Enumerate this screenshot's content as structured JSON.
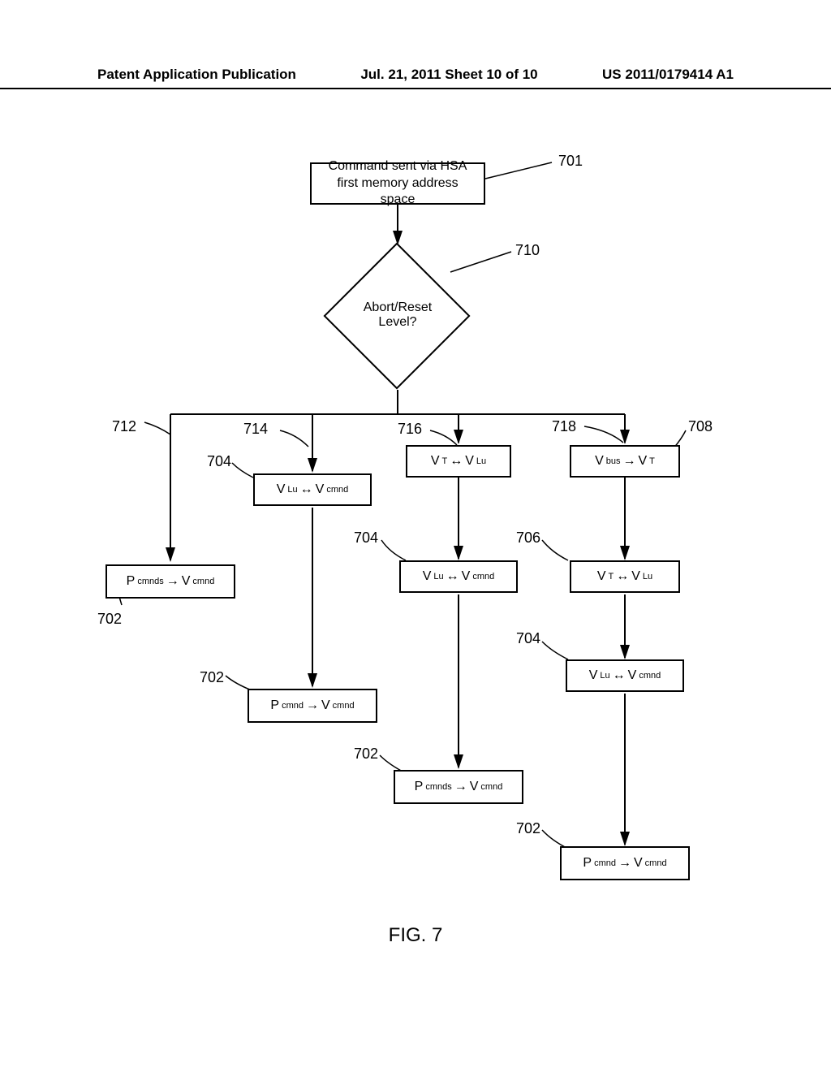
{
  "header": {
    "left": "Patent Application Publication",
    "center": "Jul. 21, 2011  Sheet 10 of 10",
    "right": "US 2011/0179414 A1"
  },
  "caption": "FIG. 7",
  "refs": {
    "r701": "701",
    "r710": "710",
    "r712": "712",
    "r714": "714",
    "r716": "716",
    "r718": "718",
    "r708": "708",
    "r702a": "702",
    "r702b": "702",
    "r702c": "702",
    "r702d": "702",
    "r704a": "704",
    "r704b": "704",
    "r704c": "704",
    "r706": "706"
  },
  "boxes": {
    "start": "Command sent via HSA\nfirst memory address space",
    "decision": "Abort/Reset\nLevel?",
    "vt_vlu_1": {
      "a": "V",
      "as": "T",
      "b": "V",
      "bs": "Lu"
    },
    "vbus_vt": {
      "a": "V",
      "as": "bus",
      "b": "V",
      "bs": "T"
    },
    "vlu_vcmnd_1": {
      "a": "V",
      "as": "Lu",
      "b": "V",
      "bs": "cmnd"
    },
    "vlu_vcmnd_2": {
      "a": "V",
      "as": "Lu",
      "b": "V",
      "bs": "cmnd"
    },
    "vt_vlu_2": {
      "a": "V",
      "as": "T",
      "b": "V",
      "bs": "Lu"
    },
    "vlu_vcmnd_3": {
      "a": "V",
      "as": "Lu",
      "b": "V",
      "bs": "cmnd"
    },
    "pcmnd_vcmnd_1": {
      "a": "P",
      "as": "cmnds",
      "b": "V",
      "bs": "cmnd"
    },
    "pcmnd_vcmnd_2": {
      "a": "P",
      "as": "cmnd",
      "b": "V",
      "bs": "cmnd"
    },
    "pcmnd_vcmnd_3": {
      "a": "P",
      "as": "cmnds",
      "b": "V",
      "bs": "cmnd"
    },
    "pcmnd_vcmnd_4": {
      "a": "P",
      "as": "cmnd",
      "b": "V",
      "bs": "cmnd"
    }
  },
  "style": {
    "stroke": "#000000",
    "stroke_width": 2,
    "background": "#ffffff"
  }
}
